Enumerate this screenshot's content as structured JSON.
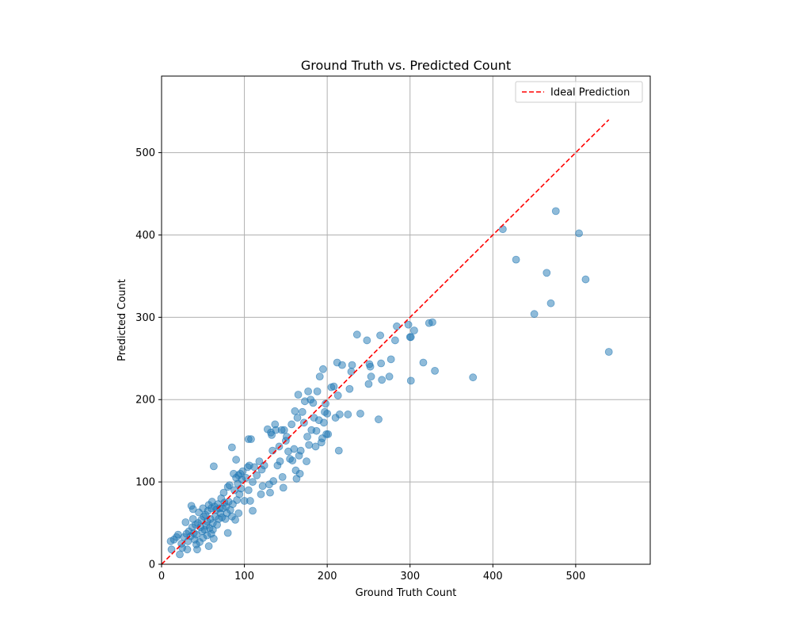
{
  "chart_data": {
    "type": "scatter",
    "title": "Ground Truth vs. Predicted Count",
    "xlabel": "Ground Truth Count",
    "ylabel": "Predicted Count",
    "xlim": [
      0,
      590
    ],
    "ylim": [
      0,
      593
    ],
    "xticks": [
      0,
      100,
      200,
      300,
      400,
      500
    ],
    "yticks": [
      0,
      100,
      200,
      300,
      400,
      500
    ],
    "grid": true,
    "legend_position": "top-right",
    "colors": {
      "points": "#1f77b4",
      "ideal": "#ff0000"
    },
    "ideal_line": {
      "name": "Ideal Prediction",
      "x": [
        0,
        540
      ],
      "y": [
        0,
        540
      ]
    },
    "points": [
      [
        11,
        28
      ],
      [
        12,
        18
      ],
      [
        15,
        30
      ],
      [
        18,
        33
      ],
      [
        20,
        36
      ],
      [
        22,
        12
      ],
      [
        24,
        25
      ],
      [
        25,
        20
      ],
      [
        27,
        33
      ],
      [
        29,
        51
      ],
      [
        30,
        37
      ],
      [
        31,
        18
      ],
      [
        32,
        28
      ],
      [
        33,
        40
      ],
      [
        35,
        34
      ],
      [
        36,
        71
      ],
      [
        37,
        45
      ],
      [
        38,
        67
      ],
      [
        38,
        55
      ],
      [
        39,
        38
      ],
      [
        40,
        30
      ],
      [
        41,
        48
      ],
      [
        42,
        24
      ],
      [
        42,
        36
      ],
      [
        43,
        18
      ],
      [
        44,
        50
      ],
      [
        45,
        63
      ],
      [
        46,
        27
      ],
      [
        47,
        45
      ],
      [
        48,
        54
      ],
      [
        49,
        40
      ],
      [
        50,
        68
      ],
      [
        50,
        32
      ],
      [
        51,
        58
      ],
      [
        52,
        42
      ],
      [
        53,
        60
      ],
      [
        54,
        47
      ],
      [
        55,
        35
      ],
      [
        55,
        52
      ],
      [
        56,
        65
      ],
      [
        57,
        72
      ],
      [
        57,
        22
      ],
      [
        58,
        44
      ],
      [
        59,
        55
      ],
      [
        60,
        68
      ],
      [
        60,
        37
      ],
      [
        61,
        76
      ],
      [
        62,
        50
      ],
      [
        62,
        42
      ],
      [
        63,
        119
      ],
      [
        63,
        31
      ],
      [
        64,
        70
      ],
      [
        65,
        58
      ],
      [
        66,
        66
      ],
      [
        67,
        48
      ],
      [
        68,
        73
      ],
      [
        69,
        55
      ],
      [
        70,
        68
      ],
      [
        71,
        62
      ],
      [
        72,
        80
      ],
      [
        73,
        57
      ],
      [
        74,
        68
      ],
      [
        75,
        87
      ],
      [
        76,
        75
      ],
      [
        77,
        55
      ],
      [
        78,
        70
      ],
      [
        79,
        62
      ],
      [
        80,
        38
      ],
      [
        80,
        94
      ],
      [
        81,
        76
      ],
      [
        82,
        96
      ],
      [
        83,
        66
      ],
      [
        85,
        58
      ],
      [
        85,
        142
      ],
      [
        86,
        73
      ],
      [
        87,
        110
      ],
      [
        88,
        90
      ],
      [
        89,
        54
      ],
      [
        90,
        105
      ],
      [
        90,
        127
      ],
      [
        91,
        78
      ],
      [
        92,
        98
      ],
      [
        93,
        62
      ],
      [
        93,
        108
      ],
      [
        94,
        85
      ],
      [
        95,
        110
      ],
      [
        96,
        92
      ],
      [
        97,
        103
      ],
      [
        98,
        113
      ],
      [
        100,
        77
      ],
      [
        102,
        105
      ],
      [
        104,
        118
      ],
      [
        105,
        90
      ],
      [
        105,
        152
      ],
      [
        106,
        120
      ],
      [
        107,
        77
      ],
      [
        108,
        152
      ],
      [
        110,
        100
      ],
      [
        110,
        65
      ],
      [
        112,
        118
      ],
      [
        115,
        108
      ],
      [
        118,
        125
      ],
      [
        120,
        85
      ],
      [
        121,
        115
      ],
      [
        122,
        95
      ],
      [
        124,
        120
      ],
      [
        128,
        164
      ],
      [
        130,
        97
      ],
      [
        131,
        87
      ],
      [
        132,
        160
      ],
      [
        133,
        157
      ],
      [
        134,
        138
      ],
      [
        135,
        101
      ],
      [
        137,
        170
      ],
      [
        138,
        163
      ],
      [
        140,
        120
      ],
      [
        142,
        143
      ],
      [
        143,
        125
      ],
      [
        145,
        163
      ],
      [
        146,
        106
      ],
      [
        147,
        93
      ],
      [
        148,
        163
      ],
      [
        150,
        150
      ],
      [
        151,
        155
      ],
      [
        153,
        137
      ],
      [
        155,
        128
      ],
      [
        157,
        170
      ],
      [
        158,
        126
      ],
      [
        160,
        140
      ],
      [
        161,
        186
      ],
      [
        162,
        114
      ],
      [
        163,
        104
      ],
      [
        164,
        178
      ],
      [
        165,
        206
      ],
      [
        166,
        132
      ],
      [
        167,
        110
      ],
      [
        168,
        138
      ],
      [
        170,
        185
      ],
      [
        172,
        172
      ],
      [
        173,
        198
      ],
      [
        175,
        125
      ],
      [
        176,
        155
      ],
      [
        177,
        210
      ],
      [
        178,
        145
      ],
      [
        180,
        200
      ],
      [
        181,
        163
      ],
      [
        183,
        196
      ],
      [
        184,
        178
      ],
      [
        186,
        143
      ],
      [
        187,
        162
      ],
      [
        188,
        210
      ],
      [
        190,
        175
      ],
      [
        191,
        228
      ],
      [
        193,
        148
      ],
      [
        194,
        153
      ],
      [
        195,
        237
      ],
      [
        196,
        172
      ],
      [
        197,
        185
      ],
      [
        198,
        195
      ],
      [
        199,
        158
      ],
      [
        200,
        183
      ],
      [
        201,
        158
      ],
      [
        205,
        215
      ],
      [
        208,
        216
      ],
      [
        210,
        178
      ],
      [
        212,
        245
      ],
      [
        213,
        205
      ],
      [
        214,
        138
      ],
      [
        215,
        182
      ],
      [
        218,
        242
      ],
      [
        225,
        182
      ],
      [
        227,
        213
      ],
      [
        229,
        234
      ],
      [
        230,
        242
      ],
      [
        236,
        279
      ],
      [
        240,
        183
      ],
      [
        248,
        272
      ],
      [
        250,
        219
      ],
      [
        251,
        243
      ],
      [
        252,
        240
      ],
      [
        253,
        228
      ],
      [
        262,
        176
      ],
      [
        264,
        278
      ],
      [
        265,
        244
      ],
      [
        266,
        224
      ],
      [
        275,
        228
      ],
      [
        277,
        249
      ],
      [
        282,
        272
      ],
      [
        284,
        289
      ],
      [
        298,
        291
      ],
      [
        300,
        276
      ],
      [
        301,
        223
      ],
      [
        301,
        276
      ],
      [
        305,
        284
      ],
      [
        316,
        245
      ],
      [
        323,
        293
      ],
      [
        327,
        294
      ],
      [
        330,
        235
      ],
      [
        376,
        227
      ],
      [
        412,
        407
      ],
      [
        428,
        370
      ],
      [
        450,
        304
      ],
      [
        465,
        354
      ],
      [
        470,
        317
      ],
      [
        476,
        429
      ],
      [
        504,
        402
      ],
      [
        512,
        346
      ],
      [
        540,
        258
      ]
    ]
  }
}
